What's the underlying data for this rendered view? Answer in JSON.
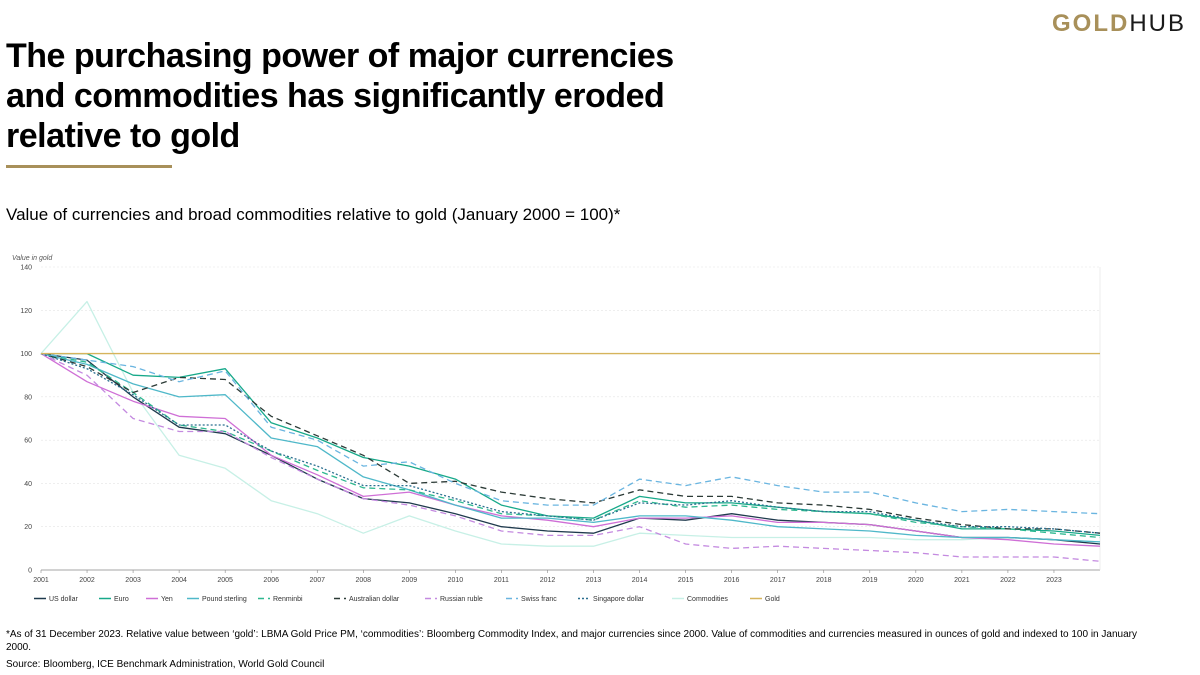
{
  "logo": {
    "part1": "GOLD",
    "part2": "HUB"
  },
  "headline": "The purchasing power of major currencies and commodities has significantly eroded relative to gold",
  "subtitle": "Value of currencies and broad commodities relative to gold (January 2000 = 100)*",
  "footnote": "*As of 31 December 2023. Relative value between ‘gold’: LBMA Gold Price PM, ‘commodities’: Bloomberg Commodity Index, and major currencies since 2000. Value of commodities and currencies measured in ounces of gold and indexed to 100 in January 2000.",
  "source": "Source: Bloomberg, ICE Benchmark Administration, World Gold Council",
  "colors": {
    "accent": "#a8905a"
  },
  "chart_data": {
    "type": "line",
    "ylabel": "Value in gold",
    "xlabel": "",
    "ylim": [
      0,
      140
    ],
    "xlim": [
      2001,
      2024
    ],
    "yticks": [
      0,
      20,
      40,
      60,
      80,
      100,
      120,
      140
    ],
    "xticks": [
      2001,
      2002,
      2003,
      2004,
      2005,
      2006,
      2007,
      2008,
      2009,
      2010,
      2011,
      2012,
      2013,
      2014,
      2015,
      2016,
      2017,
      2018,
      2019,
      2020,
      2021,
      2022,
      2023
    ],
    "grid": "horizontal",
    "legend_position": "bottom",
    "x": [
      2001,
      2002,
      2003,
      2004,
      2005,
      2006,
      2007,
      2008,
      2009,
      2010,
      2011,
      2012,
      2013,
      2014,
      2015,
      2016,
      2017,
      2018,
      2019,
      2020,
      2021,
      2022,
      2023,
      2024
    ],
    "series": [
      {
        "name": "US dollar",
        "color": "#1f3a4d",
        "dash": "",
        "values": [
          100,
          97,
          80,
          66,
          63,
          53,
          42,
          33,
          31,
          26,
          20,
          18,
          17,
          24,
          23,
          26,
          23,
          22,
          21,
          18,
          15,
          15,
          14,
          12
        ]
      },
      {
        "name": "Euro",
        "color": "#17a98a",
        "dash": "",
        "values": [
          100,
          100,
          90,
          89,
          93,
          68,
          61,
          52,
          48,
          42,
          30,
          25,
          24,
          34,
          31,
          31,
          29,
          27,
          26,
          23,
          19,
          19,
          18,
          16
        ]
      },
      {
        "name": "Yen",
        "color": "#cf6fd6",
        "dash": "",
        "values": [
          100,
          87,
          78,
          71,
          70,
          53,
          44,
          34,
          36,
          30,
          25,
          23,
          20,
          24,
          24,
          25,
          22,
          22,
          21,
          18,
          15,
          14,
          12,
          11
        ]
      },
      {
        "name": "Pound sterling",
        "color": "#4fb8c9",
        "dash": "",
        "values": [
          100,
          95,
          86,
          80,
          81,
          61,
          57,
          43,
          37,
          30,
          24,
          24,
          22,
          25,
          25,
          23,
          20,
          19,
          18,
          16,
          15,
          15,
          14,
          13
        ]
      },
      {
        "name": "Renminbi",
        "color": "#2eb890",
        "dash": "6,4",
        "values": [
          100,
          96,
          82,
          67,
          64,
          55,
          46,
          38,
          37,
          32,
          26,
          25,
          23,
          32,
          29,
          30,
          28,
          27,
          26,
          22,
          20,
          19,
          17,
          15
        ]
      },
      {
        "name": "Australian dollar",
        "color": "#2b3a36",
        "dash": "6,4",
        "values": [
          100,
          94,
          82,
          89,
          88,
          71,
          62,
          53,
          40,
          41,
          36,
          33,
          31,
          37,
          34,
          34,
          31,
          30,
          28,
          24,
          21,
          19,
          19,
          17
        ]
      },
      {
        "name": "Russian ruble",
        "color": "#c48ae0",
        "dash": "6,4",
        "values": [
          100,
          90,
          70,
          64,
          64,
          52,
          42,
          33,
          30,
          25,
          18,
          16,
          16,
          20,
          12,
          10,
          11,
          10,
          9,
          8,
          6,
          6,
          6,
          4
        ]
      },
      {
        "name": "Swiss franc",
        "color": "#6ab5e0",
        "dash": "6,4",
        "values": [
          100,
          97,
          94,
          87,
          92,
          66,
          60,
          48,
          50,
          40,
          32,
          30,
          30,
          42,
          39,
          43,
          39,
          36,
          36,
          31,
          27,
          28,
          27,
          26
        ]
      },
      {
        "name": "Singapore dollar",
        "color": "#2a6f8f",
        "dash": "2,2",
        "values": [
          100,
          93,
          81,
          67,
          67,
          55,
          48,
          39,
          39,
          33,
          27,
          25,
          23,
          31,
          30,
          32,
          29,
          27,
          27,
          23,
          20,
          20,
          19,
          17
        ]
      },
      {
        "name": "Commodities",
        "color": "#c7f0e6",
        "dash": "",
        "values": [
          100,
          124,
          82,
          53,
          47,
          32,
          26,
          17,
          25,
          18,
          12,
          11,
          11,
          17,
          16,
          15,
          15,
          15,
          15,
          14,
          14,
          15,
          14,
          13
        ]
      },
      {
        "name": "Gold",
        "color": "#d6b45c",
        "dash": "",
        "values": [
          100,
          100,
          100,
          100,
          100,
          100,
          100,
          100,
          100,
          100,
          100,
          100,
          100,
          100,
          100,
          100,
          100,
          100,
          100,
          100,
          100,
          100,
          100,
          100
        ]
      }
    ]
  }
}
